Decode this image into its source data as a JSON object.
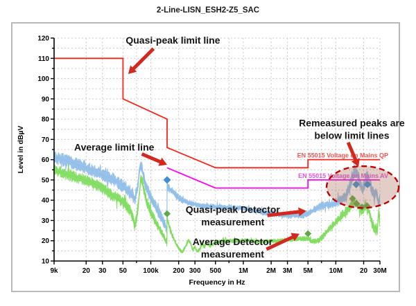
{
  "page": {
    "title": "2-Line-LISN_ESH2-Z5_SAC"
  },
  "chart_data": {
    "type": "line",
    "title": "2-Line-LISN_ESH2-Z5_SAC",
    "xlabel": "Frequency in Hz",
    "ylabel": "Level in dBµV",
    "xscale": "log",
    "xlim": [
      9000,
      30000000
    ],
    "ylim": [
      10,
      120
    ],
    "grid": true,
    "grid_color": "#c9c9c9",
    "y_grid_step": 5,
    "y_label_step": 10,
    "x_tick_labels": [
      {
        "label": "9k",
        "f": 9000
      },
      {
        "label": "20",
        "f": 20000
      },
      {
        "label": "30",
        "f": 30000
      },
      {
        "label": "50",
        "f": 50000
      },
      {
        "label": "100k",
        "f": 100000
      },
      {
        "label": "200",
        "f": 200000
      },
      {
        "label": "300",
        "f": 300000
      },
      {
        "label": "500",
        "f": 500000
      },
      {
        "label": "1M",
        "f": 1000000
      },
      {
        "label": "2M",
        "f": 2000000
      },
      {
        "label": "3M",
        "f": 3000000
      },
      {
        "label": "5M",
        "f": 5000000
      },
      {
        "label": "10M",
        "f": 10000000
      },
      {
        "label": "20",
        "f": 20000000
      },
      {
        "label": "30M",
        "f": 30000000
      }
    ],
    "x_grid": [
      20000,
      30000,
      50000,
      70000,
      100000,
      200000,
      300000,
      500000,
      700000,
      1000000,
      2000000,
      3000000,
      5000000,
      7000000,
      10000000,
      20000000,
      30000000
    ],
    "limit_lines": [
      {
        "name": "EN 55015 Voltage on Mains QP",
        "color": "#f8231b",
        "label_color": "#ee5550",
        "label_level": 60,
        "points": [
          [
            9000,
            110
          ],
          [
            50000,
            110
          ],
          [
            50000,
            90
          ],
          [
            150000,
            80
          ],
          [
            150000,
            66
          ],
          [
            500000,
            56
          ],
          [
            5000000,
            56
          ],
          [
            5000000,
            60
          ],
          [
            30000000,
            60
          ]
        ]
      },
      {
        "name": "EN 55015 Voltage on Mains AV",
        "color": "#ff00f0",
        "label_color": "#e052e0",
        "label_level": 50,
        "points": [
          [
            150000,
            56
          ],
          [
            500000,
            46
          ],
          [
            5000000,
            46
          ],
          [
            5000000,
            50
          ],
          [
            30000000,
            50
          ]
        ]
      }
    ],
    "series": [
      {
        "name": "Quasi-peak Detector measurement",
        "color": "#8fbde8",
        "band": [
          [
            9000,
            2.6
          ],
          [
            100000,
            2.6
          ],
          [
            140000,
            2.0
          ],
          [
            160000,
            1.6
          ],
          [
            300000,
            1.1
          ],
          [
            1000000,
            1.0
          ],
          [
            3000000,
            1.1
          ],
          [
            5000000,
            1.4
          ],
          [
            8000000,
            1.7
          ],
          [
            12000000,
            2.2
          ],
          [
            15000000,
            2.8
          ],
          [
            30000000,
            2.4
          ]
        ],
        "points": [
          [
            9000,
            61.5
          ],
          [
            11000,
            60
          ],
          [
            14000,
            58.5
          ],
          [
            20000,
            56
          ],
          [
            25000,
            54
          ],
          [
            30000,
            52.5
          ],
          [
            36000,
            51
          ],
          [
            43000,
            49
          ],
          [
            50000,
            47
          ],
          [
            57000,
            44.5
          ],
          [
            63000,
            42.5
          ],
          [
            67000,
            40.5
          ],
          [
            72000,
            46
          ],
          [
            77000,
            57.5
          ],
          [
            80000,
            56
          ],
          [
            85000,
            50
          ],
          [
            92000,
            45
          ],
          [
            100000,
            41
          ],
          [
            110000,
            37.5
          ],
          [
            120000,
            34.5
          ],
          [
            130000,
            31.5
          ],
          [
            140000,
            28.5
          ],
          [
            149500,
            25
          ],
          [
            150000,
            49
          ],
          [
            152000,
            46.5
          ],
          [
            160000,
            45.5
          ],
          [
            175000,
            44
          ],
          [
            200000,
            41
          ],
          [
            230000,
            39.5
          ],
          [
            260000,
            38.5
          ],
          [
            300000,
            38
          ],
          [
            350000,
            37.2
          ],
          [
            400000,
            37
          ],
          [
            500000,
            36.8
          ],
          [
            700000,
            36.4
          ],
          [
            1000000,
            36
          ],
          [
            1300000,
            35
          ],
          [
            1600000,
            34
          ],
          [
            2000000,
            33.5
          ],
          [
            2500000,
            32.8
          ],
          [
            3000000,
            32.2
          ],
          [
            4000000,
            32.5
          ],
          [
            4700000,
            32.8
          ],
          [
            5200000,
            34
          ],
          [
            6000000,
            35.5
          ],
          [
            7000000,
            37.2
          ],
          [
            8000000,
            37.6
          ],
          [
            9000000,
            38
          ],
          [
            10000000,
            38.5
          ],
          [
            11000000,
            39.8
          ],
          [
            12000000,
            41.2
          ],
          [
            13000000,
            43
          ],
          [
            14000000,
            46.5
          ],
          [
            15000000,
            51
          ],
          [
            16000000,
            54
          ],
          [
            16600000,
            54.5
          ],
          [
            17500000,
            51.5
          ],
          [
            18500000,
            47.5
          ],
          [
            19500000,
            45.5
          ],
          [
            20500000,
            48
          ],
          [
            21500000,
            51
          ],
          [
            22200000,
            52.5
          ],
          [
            23000000,
            50
          ],
          [
            24000000,
            46.5
          ],
          [
            25000000,
            44
          ],
          [
            26000000,
            42.5
          ],
          [
            27000000,
            44.5
          ],
          [
            28000000,
            41.5
          ],
          [
            29000000,
            38.5
          ],
          [
            30000000,
            41.5
          ]
        ]
      },
      {
        "name": "Average Detector measurement",
        "color": "#7edc5c",
        "band": [
          [
            9000,
            2.3
          ],
          [
            100000,
            2.3
          ],
          [
            140000,
            1.4
          ],
          [
            200000,
            0.8
          ],
          [
            1000000,
            0.8
          ],
          [
            3000000,
            0.9
          ],
          [
            5000000,
            1.0
          ],
          [
            8000000,
            1.4
          ],
          [
            12000000,
            1.9
          ],
          [
            20000000,
            2.1
          ],
          [
            30000000,
            1.9
          ]
        ],
        "points": [
          [
            9000,
            55
          ],
          [
            11000,
            53.5
          ],
          [
            14000,
            52
          ],
          [
            18000,
            50.5
          ],
          [
            20000,
            49.5
          ],
          [
            24000,
            48.5
          ],
          [
            27000,
            47
          ],
          [
            30000,
            46
          ],
          [
            36000,
            43.5
          ],
          [
            43000,
            41
          ],
          [
            50000,
            39
          ],
          [
            55000,
            37
          ],
          [
            60000,
            34.5
          ],
          [
            64000,
            31.5
          ],
          [
            67000,
            27.5
          ],
          [
            70000,
            30
          ],
          [
            74000,
            40
          ],
          [
            78000,
            51
          ],
          [
            81000,
            49
          ],
          [
            86000,
            43
          ],
          [
            92000,
            38
          ],
          [
            100000,
            34
          ],
          [
            110000,
            30
          ],
          [
            120000,
            27
          ],
          [
            130000,
            24.5
          ],
          [
            140000,
            21.5
          ],
          [
            149500,
            18.5
          ],
          [
            150000,
            32.5
          ],
          [
            152000,
            30
          ],
          [
            158000,
            27
          ],
          [
            165000,
            24.5
          ],
          [
            175000,
            21.5
          ],
          [
            190000,
            18
          ],
          [
            205000,
            15.5
          ],
          [
            220000,
            14.5
          ],
          [
            240000,
            17.5
          ],
          [
            255000,
            20.5
          ],
          [
            270000,
            18.5
          ],
          [
            285000,
            15.5
          ],
          [
            300000,
            17
          ],
          [
            320000,
            14.5
          ],
          [
            340000,
            16
          ],
          [
            360000,
            18.5
          ],
          [
            380000,
            17
          ],
          [
            400000,
            19
          ],
          [
            430000,
            17.5
          ],
          [
            460000,
            18
          ],
          [
            500000,
            19
          ],
          [
            550000,
            19.5
          ],
          [
            600000,
            19.8
          ],
          [
            700000,
            20
          ],
          [
            800000,
            19.8
          ],
          [
            900000,
            20
          ],
          [
            1000000,
            20.2
          ],
          [
            1200000,
            20
          ],
          [
            1500000,
            19.5
          ],
          [
            2000000,
            19.8
          ],
          [
            2500000,
            20
          ],
          [
            3000000,
            20.5
          ],
          [
            3500000,
            20.8
          ],
          [
            4000000,
            21
          ],
          [
            4500000,
            21
          ],
          [
            5000000,
            21.2
          ],
          [
            5500000,
            19.5
          ],
          [
            6500000,
            20
          ],
          [
            7500000,
            23
          ],
          [
            8500000,
            26
          ],
          [
            10000000,
            29
          ],
          [
            11000000,
            31
          ],
          [
            12000000,
            33
          ],
          [
            13000000,
            34.5
          ],
          [
            14000000,
            36
          ],
          [
            15000000,
            38
          ],
          [
            16000000,
            39.5
          ],
          [
            16800000,
            38.5
          ],
          [
            18000000,
            36
          ],
          [
            19000000,
            35
          ],
          [
            20000000,
            36
          ],
          [
            21000000,
            37
          ],
          [
            22000000,
            36
          ],
          [
            23000000,
            34
          ],
          [
            24000000,
            31
          ],
          [
            25000000,
            28
          ],
          [
            26000000,
            26
          ],
          [
            27000000,
            26.5
          ],
          [
            28000000,
            24
          ],
          [
            28600000,
            30
          ],
          [
            29200000,
            35
          ],
          [
            29600000,
            29
          ],
          [
            30000000,
            33
          ]
        ]
      }
    ],
    "markers": [
      {
        "name": "qp-remeasured-peaks",
        "color": "#3f8fd4",
        "size": 5.5,
        "points": [
          [
            150000,
            50
          ],
          [
            16600000,
            47.8
          ],
          [
            22000000,
            47.8
          ]
        ]
      },
      {
        "name": "av-remeasured-peaks",
        "color": "#5fa848",
        "size": 5,
        "points": [
          [
            150000,
            33.3
          ],
          [
            5000000,
            23.5
          ],
          [
            15200000,
            40.8
          ],
          [
            16800000,
            38.3
          ],
          [
            19200000,
            36.6
          ],
          [
            21800000,
            37.2
          ]
        ]
      }
    ],
    "annotations": [
      {
        "id": "qp-limit",
        "lines": [
          "Quasi-peak limit line"
        ],
        "f": 173500,
        "level": 119,
        "arrow": {
          "from": [
            107000,
            114.8
          ],
          "to": [
            57000,
            102.3
          ]
        }
      },
      {
        "id": "av-limit",
        "lines": [
          "Average limit line"
        ],
        "f": 40200,
        "level": 66.2,
        "arrow": {
          "from": [
            80000,
            62.8
          ],
          "to": [
            150000,
            57.5
          ]
        }
      },
      {
        "id": "qp-meas",
        "lines": [
          "Quasi-peak Detector",
          "measurement"
        ],
        "f": 770000,
        "level": 35.4,
        "arrow": {
          "from": [
            1820000,
            32.5
          ],
          "to": [
            4800000,
            34.7
          ]
        }
      },
      {
        "id": "av-meas",
        "lines": [
          "Average Detector",
          "measurement"
        ],
        "f": 765000,
        "level": 19.5,
        "arrow": {
          "from": [
            1780000,
            15.8
          ],
          "to": [
            4050000,
            23.4
          ]
        }
      },
      {
        "id": "remeasured",
        "lines": [
          "Remeasured peaks are",
          "below limit lines"
        ],
        "f": 14900000,
        "level": 78.2,
        "arrow": {
          "from": [
            13600000,
            68.5
          ],
          "to": [
            17600000,
            56.5
          ]
        }
      }
    ],
    "annotation_color": "#d3281e",
    "highlight_ellipse": {
      "f_center": 19500000,
      "level_center": 46.5,
      "rx_decades": 0.39,
      "ry_db": 10.3,
      "fill": "#a96f58",
      "fill_opacity": 0.34,
      "stroke": "#c00000"
    }
  }
}
